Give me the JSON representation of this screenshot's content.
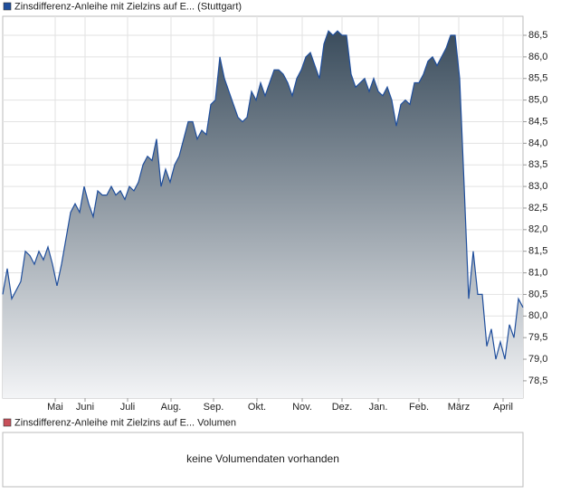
{
  "chart_data": {
    "type": "area",
    "series": [
      {
        "name": "Zinsdifferenz-Anleihe mit Zielzins auf E... (Stuttgart)",
        "color": "#1f4e9c",
        "values": [
          80.5,
          81.1,
          80.4,
          80.6,
          80.8,
          81.5,
          81.4,
          81.2,
          81.5,
          81.3,
          81.6,
          81.2,
          80.7,
          81.2,
          81.8,
          82.4,
          82.6,
          82.4,
          83.0,
          82.6,
          82.3,
          82.9,
          82.8,
          82.8,
          83.0,
          82.8,
          82.9,
          82.7,
          83.0,
          82.9,
          83.1,
          83.5,
          83.7,
          83.6,
          84.1,
          83.0,
          83.4,
          83.1,
          83.5,
          83.7,
          84.1,
          84.5,
          84.5,
          84.1,
          84.3,
          84.2,
          84.9,
          85.0,
          86.0,
          85.5,
          85.2,
          84.9,
          84.6,
          84.5,
          84.6,
          85.2,
          85.0,
          85.4,
          85.1,
          85.4,
          85.7,
          85.7,
          85.6,
          85.4,
          85.1,
          85.5,
          85.7,
          86.0,
          86.1,
          85.8,
          85.5,
          86.3,
          86.6,
          86.5,
          86.6,
          86.5,
          86.5,
          85.6,
          85.3,
          85.4,
          85.5,
          85.2,
          85.5,
          85.2,
          85.1,
          85.3,
          85.0,
          84.4,
          84.9,
          85.0,
          84.9,
          85.4,
          85.4,
          85.6,
          85.9,
          86.0,
          85.8,
          86.0,
          86.2,
          86.5,
          86.5,
          85.5,
          83.0,
          80.4,
          81.5,
          80.5,
          80.5,
          79.3,
          79.7,
          79.0,
          79.4,
          79.0,
          79.8,
          79.5,
          80.4,
          80.2
        ]
      }
    ],
    "xlim": [
      0,
      115
    ],
    "xticks": [
      {
        "value": 11.6,
        "label": "Mai"
      },
      {
        "value": 18.2,
        "label": "Juni"
      },
      {
        "value": 27.6,
        "label": "Juli"
      },
      {
        "value": 37.2,
        "label": "Aug."
      },
      {
        "value": 46.6,
        "label": "Sep."
      },
      {
        "value": 56.2,
        "label": "Okt."
      },
      {
        "value": 66.2,
        "label": "Nov."
      },
      {
        "value": 75,
        "label": "Dez."
      },
      {
        "value": 83,
        "label": "Jan."
      },
      {
        "value": 92,
        "label": "Feb."
      },
      {
        "value": 100.8,
        "label": "März"
      },
      {
        "value": 110.6,
        "label": "April"
      }
    ],
    "ylim": [
      78.1,
      86.94
    ],
    "yticks": [
      {
        "value": 78.5,
        "label": "78,5"
      },
      {
        "value": 79,
        "label": "79,0"
      },
      {
        "value": 79.5,
        "label": "79,5"
      },
      {
        "value": 80,
        "label": "80,0"
      },
      {
        "value": 80.5,
        "label": "80,5"
      },
      {
        "value": 81,
        "label": "81,0"
      },
      {
        "value": 81.5,
        "label": "81,5"
      },
      {
        "value": 82,
        "label": "82,0"
      },
      {
        "value": 82.5,
        "label": "82,5"
      },
      {
        "value": 83,
        "label": "83,0"
      },
      {
        "value": 83.5,
        "label": "83,5"
      },
      {
        "value": 84,
        "label": "84,0"
      },
      {
        "value": 84.5,
        "label": "84,5"
      },
      {
        "value": 85,
        "label": "85,0"
      },
      {
        "value": 85.5,
        "label": "85,5"
      },
      {
        "value": 86,
        "label": "86,0"
      },
      {
        "value": 86.5,
        "label": "86,5"
      }
    ],
    "grid": true
  },
  "volume_panel": {
    "legend": "Zinsdifferenz-Anleihe mit Zielzins auf E... Volumen",
    "color": "#c8505a",
    "message": "keine Volumendaten vorhanden"
  }
}
